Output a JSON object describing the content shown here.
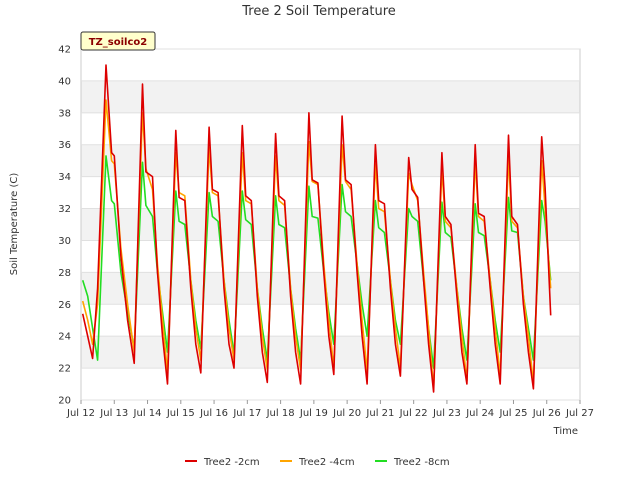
{
  "chart_data": {
    "type": "line",
    "title": "Tree 2 Soil Temperature",
    "xlabel": "Time",
    "ylabel": "Soil Temperature (C)",
    "badge": "TZ_soilco2",
    "xlim": [
      12,
      27
    ],
    "ylim": [
      20,
      42
    ],
    "x_ticks": [
      {
        "v": 12,
        "label": "Jul 12"
      },
      {
        "v": 13,
        "label": "Jul 13"
      },
      {
        "v": 14,
        "label": "Jul 14"
      },
      {
        "v": 15,
        "label": "Jul 15"
      },
      {
        "v": 16,
        "label": "Jul 16"
      },
      {
        "v": 17,
        "label": "Jul 17"
      },
      {
        "v": 18,
        "label": "Jul 18"
      },
      {
        "v": 19,
        "label": "Jul 19"
      },
      {
        "v": 20,
        "label": "Jul 20"
      },
      {
        "v": 21,
        "label": "Jul 21"
      },
      {
        "v": 22,
        "label": "Jul 22"
      },
      {
        "v": 23,
        "label": "Jul 23"
      },
      {
        "v": 24,
        "label": "Jul 24"
      },
      {
        "v": 25,
        "label": "Jul 25"
      },
      {
        "v": 26,
        "label": "Jul 26"
      },
      {
        "v": 27,
        "label": "Jul 27"
      }
    ],
    "y_ticks": [
      20,
      22,
      24,
      26,
      28,
      30,
      32,
      34,
      36,
      38,
      40,
      42
    ],
    "grid": true,
    "legend_position": "bottom",
    "series": [
      {
        "name": "Tree2 -2cm",
        "color": "#dd0000",
        "x": [
          12.05,
          12.2,
          12.35,
          12.5,
          12.75,
          12.92,
          13.0,
          13.2,
          13.4,
          13.6,
          13.85,
          13.95,
          14.15,
          14.3,
          14.45,
          14.6,
          14.85,
          14.95,
          15.12,
          15.3,
          15.45,
          15.6,
          15.85,
          15.95,
          16.12,
          16.3,
          16.45,
          16.6,
          16.85,
          16.95,
          17.12,
          17.3,
          17.45,
          17.6,
          17.85,
          17.95,
          18.12,
          18.3,
          18.45,
          18.6,
          18.85,
          18.95,
          19.12,
          19.3,
          19.45,
          19.6,
          19.85,
          19.95,
          20.12,
          20.3,
          20.45,
          20.6,
          20.85,
          20.95,
          21.12,
          21.3,
          21.45,
          21.6,
          21.85,
          21.95,
          22.12,
          22.3,
          22.45,
          22.6,
          22.85,
          22.95,
          23.12,
          23.3,
          23.45,
          23.6,
          23.85,
          23.95,
          24.12,
          24.3,
          24.45,
          24.6,
          24.85,
          24.95,
          25.12,
          25.3,
          25.45,
          25.6,
          25.85,
          25.95,
          26.12
        ],
        "y": [
          25.4,
          24.0,
          22.6,
          27.0,
          41.0,
          35.5,
          35.3,
          29.0,
          25.0,
          22.3,
          39.8,
          34.3,
          34.0,
          28.0,
          24.0,
          21.0,
          36.9,
          32.7,
          32.5,
          27.0,
          23.5,
          21.7,
          37.1,
          33.2,
          33.0,
          27.0,
          23.5,
          22.0,
          37.2,
          32.8,
          32.5,
          26.5,
          23.0,
          21.1,
          36.7,
          32.8,
          32.5,
          26.5,
          23.0,
          21.0,
          38.0,
          33.8,
          33.6,
          28.0,
          24.0,
          21.6,
          37.8,
          33.8,
          33.5,
          28.0,
          24.0,
          21.0,
          36.0,
          32.5,
          32.3,
          27.0,
          23.5,
          21.5,
          35.2,
          33.2,
          32.7,
          27.5,
          23.5,
          20.5,
          35.5,
          31.5,
          31.0,
          26.5,
          23.0,
          21.0,
          36.0,
          31.7,
          31.5,
          27.0,
          23.5,
          21.0,
          36.6,
          31.5,
          31.0,
          26.0,
          23.0,
          20.7,
          36.5,
          33.3,
          25.3
        ]
      },
      {
        "name": "Tree2 -4cm",
        "color": "#ffa500",
        "x": [
          12.05,
          12.2,
          12.35,
          12.5,
          12.75,
          12.92,
          13.0,
          13.2,
          13.4,
          13.6,
          13.85,
          13.95,
          14.15,
          14.3,
          14.45,
          14.6,
          14.85,
          14.95,
          15.12,
          15.3,
          15.45,
          15.6,
          15.85,
          15.95,
          16.12,
          16.3,
          16.45,
          16.6,
          16.85,
          16.95,
          17.12,
          17.3,
          17.45,
          17.6,
          17.85,
          17.95,
          18.12,
          18.3,
          18.45,
          18.6,
          18.85,
          18.95,
          19.12,
          19.3,
          19.45,
          19.6,
          19.85,
          19.95,
          20.12,
          20.3,
          20.45,
          20.6,
          20.85,
          20.95,
          21.12,
          21.3,
          21.45,
          21.6,
          21.85,
          21.95,
          22.12,
          22.3,
          22.45,
          22.6,
          22.85,
          22.95,
          23.12,
          23.3,
          23.45,
          23.6,
          23.85,
          23.95,
          24.12,
          24.3,
          24.45,
          24.6,
          24.85,
          24.95,
          25.12,
          25.3,
          25.45,
          25.6,
          25.85,
          25.95,
          26.12
        ],
        "y": [
          26.2,
          25.0,
          23.5,
          26.0,
          38.8,
          35.0,
          34.8,
          29.5,
          26.0,
          23.0,
          38.0,
          34.5,
          33.2,
          28.5,
          25.0,
          21.7,
          35.5,
          33.0,
          32.8,
          27.5,
          24.5,
          22.5,
          35.8,
          33.0,
          32.8,
          27.5,
          24.5,
          22.5,
          35.5,
          32.5,
          32.3,
          27.0,
          24.0,
          21.9,
          35.3,
          32.5,
          32.2,
          27.0,
          24.0,
          21.9,
          36.2,
          33.7,
          33.5,
          28.5,
          25.0,
          22.0,
          36.0,
          33.7,
          33.2,
          28.5,
          25.0,
          21.8,
          34.8,
          32.0,
          31.8,
          27.5,
          24.5,
          22.0,
          34.2,
          33.5,
          32.5,
          28.0,
          24.5,
          20.7,
          34.5,
          31.2,
          30.8,
          27.0,
          24.0,
          21.2,
          35.0,
          31.5,
          31.2,
          27.5,
          24.5,
          21.5,
          35.2,
          31.2,
          30.8,
          26.5,
          24.0,
          21.0,
          35.0,
          32.0,
          27.0
        ]
      },
      {
        "name": "Tree2 -8cm",
        "color": "#22dd22",
        "x": [
          12.05,
          12.2,
          12.35,
          12.5,
          12.75,
          12.92,
          13.0,
          13.2,
          13.4,
          13.6,
          13.85,
          13.95,
          14.15,
          14.3,
          14.45,
          14.6,
          14.85,
          14.95,
          15.12,
          15.3,
          15.45,
          15.6,
          15.85,
          15.95,
          16.12,
          16.3,
          16.45,
          16.6,
          16.85,
          16.95,
          17.12,
          17.3,
          17.45,
          17.6,
          17.85,
          17.95,
          18.12,
          18.3,
          18.45,
          18.6,
          18.85,
          18.95,
          19.12,
          19.3,
          19.45,
          19.6,
          19.85,
          19.95,
          20.12,
          20.3,
          20.45,
          20.6,
          20.85,
          20.95,
          21.12,
          21.3,
          21.45,
          21.6,
          21.85,
          21.95,
          22.12,
          22.3,
          22.45,
          22.6,
          22.85,
          22.95,
          23.12,
          23.3,
          23.45,
          23.6,
          23.85,
          23.95,
          24.12,
          24.3,
          24.45,
          24.6,
          24.85,
          24.95,
          25.12,
          25.3,
          25.45,
          25.6,
          25.85,
          25.95,
          26.12
        ],
        "y": [
          27.5,
          26.5,
          24.5,
          22.5,
          35.3,
          32.5,
          32.3,
          28.0,
          25.5,
          23.2,
          34.9,
          32.2,
          31.5,
          28.0,
          25.5,
          23.0,
          33.1,
          31.2,
          31.0,
          27.5,
          25.0,
          23.2,
          33.0,
          31.5,
          31.2,
          27.5,
          25.0,
          22.9,
          33.1,
          31.3,
          31.0,
          27.0,
          24.5,
          22.5,
          32.8,
          31.0,
          30.8,
          27.0,
          24.5,
          22.5,
          33.4,
          31.5,
          31.4,
          28.0,
          25.5,
          23.5,
          33.5,
          31.8,
          31.5,
          28.5,
          26.0,
          24.0,
          32.5,
          30.8,
          30.5,
          27.5,
          25.0,
          23.5,
          32.0,
          31.5,
          31.2,
          27.5,
          24.5,
          22.0,
          32.4,
          30.5,
          30.2,
          27.0,
          24.5,
          22.5,
          32.3,
          30.5,
          30.3,
          27.5,
          25.0,
          23.0,
          32.7,
          30.6,
          30.5,
          26.5,
          24.5,
          22.5,
          32.5,
          31.2,
          27.5
        ]
      }
    ]
  }
}
